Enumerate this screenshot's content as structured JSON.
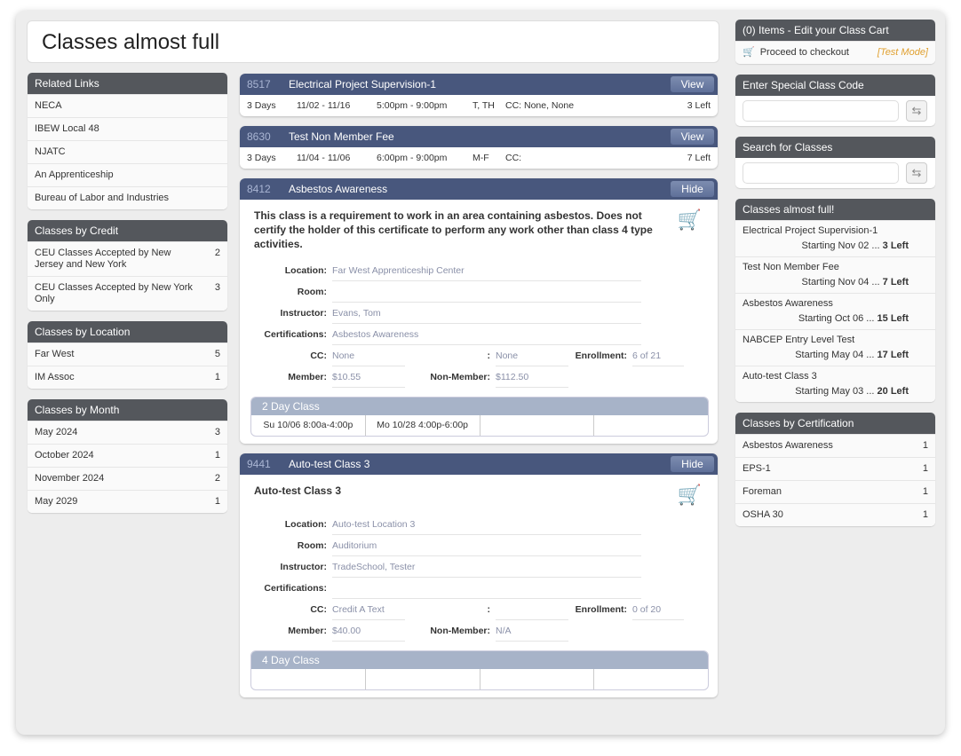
{
  "page_title": "Classes almost full",
  "related_links": {
    "title": "Related Links",
    "items": [
      "NECA",
      "IBEW Local 48",
      "NJATC",
      "An Apprenticeship",
      "Bureau of Labor and Industries"
    ]
  },
  "by_credit": {
    "title": "Classes by Credit",
    "items": [
      {
        "label": "CEU Classes Accepted by New Jersey and New York",
        "count": "2"
      },
      {
        "label": "CEU Classes Accepted by New York Only",
        "count": "3"
      }
    ]
  },
  "by_location": {
    "title": "Classes by Location",
    "items": [
      {
        "label": "Far West",
        "count": "5"
      },
      {
        "label": "IM Assoc",
        "count": "1"
      }
    ]
  },
  "by_month": {
    "title": "Classes by Month",
    "items": [
      {
        "label": "May 2024",
        "count": "3"
      },
      {
        "label": "October 2024",
        "count": "1"
      },
      {
        "label": "November 2024",
        "count": "2"
      },
      {
        "label": "May 2029",
        "count": "1"
      }
    ]
  },
  "classes": [
    {
      "id": "8517",
      "name": "Electrical Project Supervision-1",
      "button": "View",
      "days": "3 Days",
      "dates": "11/02 - 11/16",
      "time": "5:00pm - 9:00pm",
      "weekdays": "T, TH",
      "cc": "CC: None, None",
      "left": "3 Left"
    },
    {
      "id": "8630",
      "name": "Test Non Member Fee",
      "button": "View",
      "days": "3 Days",
      "dates": "11/04 - 11/06",
      "time": "6:00pm - 9:00pm",
      "weekdays": "M-F",
      "cc": "CC:",
      "left": "7 Left"
    },
    {
      "id": "8412",
      "name": "Asbestos Awareness",
      "button": "Hide",
      "description": "This class is a requirement to work in an area containing asbestos. Does not certify the holder of this certificate to perform any work other than class 4 type activities.",
      "location": "Far West Apprenticeship Center",
      "room": "",
      "instructor": "Evans, Tom",
      "certifications": "Asbestos Awareness",
      "cc": "None",
      "cc2": "None",
      "enrollment": "6 of 21",
      "member": "$10.55",
      "non_member": "$112.50",
      "schedule_title": "2 Day Class",
      "schedule": [
        "Su 10/06 8:00a-4:00p",
        "Mo 10/28 4:00p-6:00p",
        "",
        ""
      ]
    },
    {
      "id": "9441",
      "name": "Auto-test Class 3",
      "button": "Hide",
      "description": "Auto-test Class 3",
      "location": "Auto-test Location 3",
      "room": "Auditorium",
      "instructor": "TradeSchool, Tester",
      "certifications": "",
      "cc": "Credit A Text",
      "cc2": "",
      "enrollment": "0 of 20",
      "member": "$40.00",
      "non_member": "N/A",
      "schedule_title": "4 Day Class",
      "schedule": [
        "",
        "",
        "",
        ""
      ]
    }
  ],
  "labels": {
    "location": "Location:",
    "room": "Room:",
    "instructor": "Instructor:",
    "certifications": "Certifications:",
    "cc": "CC:",
    "colon": ":",
    "enrollment": "Enrollment:",
    "member": "Member:",
    "non_member": "Non-Member:"
  },
  "cart": {
    "title": "(0) Items - Edit your Class Cart",
    "checkout": "Proceed to checkout",
    "mode": "[Test Mode]",
    "mode_color": "#e0a030"
  },
  "special_code": {
    "title": "Enter Special Class Code",
    "value": ""
  },
  "search": {
    "title": "Search for Classes",
    "value": ""
  },
  "almost_full": {
    "title": "Classes almost full!",
    "items": [
      {
        "name": "Electrical Project Supervision-1",
        "start": "Starting Nov 02",
        "left": "3 Left"
      },
      {
        "name": "Test Non Member Fee",
        "start": "Starting Nov 04",
        "left": "7 Left"
      },
      {
        "name": "Asbestos Awareness",
        "start": "Starting Oct 06",
        "left": "15 Left"
      },
      {
        "name": "NABCEP Entry Level Test",
        "start": "Starting May 04",
        "left": "17 Left"
      },
      {
        "name": "Auto-test Class 3",
        "start": "Starting May 03",
        "left": "20 Left"
      }
    ]
  },
  "by_cert": {
    "title": "Classes by Certification",
    "items": [
      {
        "label": "Asbestos Awareness",
        "count": "1"
      },
      {
        "label": "EPS-1",
        "count": "1"
      },
      {
        "label": "Foreman",
        "count": "1"
      },
      {
        "label": "OSHA 30",
        "count": "1"
      }
    ]
  },
  "colors": {
    "header_dark": "#54575c",
    "class_header": "#48577d",
    "schedule_header": "#a7b3c8"
  }
}
